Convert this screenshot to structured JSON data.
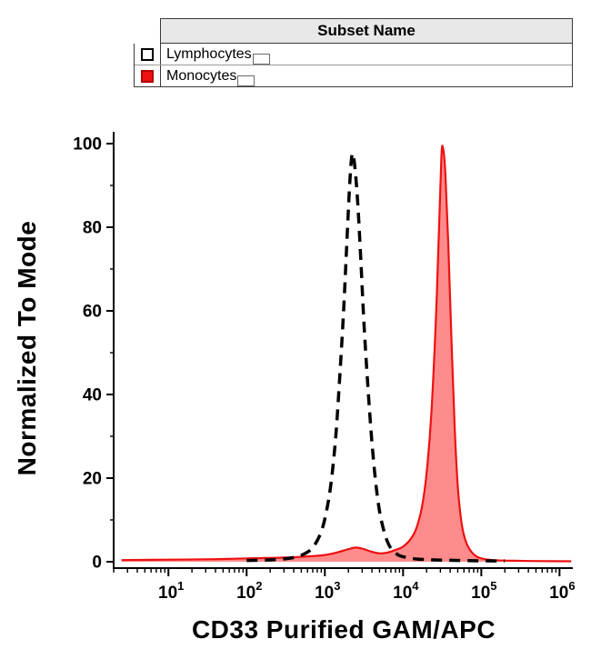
{
  "legend": {
    "header": "Subset Name",
    "entries": [
      {
        "label": "Lymphocytes",
        "swatch_fill": "#ffffff",
        "swatch_border": "#000000"
      },
      {
        "label": "Monocytes",
        "swatch_fill": "#ee1111",
        "swatch_border": "#b00000"
      }
    ]
  },
  "chart_data": {
    "type": "line",
    "title": "",
    "xlabel": "CD33 Purified GAM/APC",
    "ylabel": "Normalized To Mode",
    "x_scale": "log10",
    "xlim_log10": [
      0.3,
      6.17
    ],
    "ylim": [
      0,
      100
    ],
    "y_ticks": [
      0,
      20,
      40,
      60,
      80,
      100
    ],
    "y_minor_step": 10,
    "x_tick_base": "10",
    "x_tick_exponents": [
      1,
      2,
      3,
      4,
      5,
      6
    ],
    "grid": false,
    "legend_position": "top",
    "axis_color": "#000000",
    "series": [
      {
        "name": "Monocytes",
        "line_style": "solid",
        "color": "#ee1111",
        "fill": "rgba(255,45,45,0.55)",
        "points": [
          [
            0.4,
            0.4
          ],
          [
            1.0,
            0.5
          ],
          [
            1.6,
            0.6
          ],
          [
            2.0,
            0.8
          ],
          [
            2.5,
            1.0
          ],
          [
            2.8,
            1.3
          ],
          [
            3.0,
            1.6
          ],
          [
            3.15,
            2.2
          ],
          [
            3.3,
            3.0
          ],
          [
            3.4,
            3.4
          ],
          [
            3.5,
            3.0
          ],
          [
            3.6,
            2.4
          ],
          [
            3.7,
            2.0
          ],
          [
            3.8,
            2.2
          ],
          [
            3.9,
            2.8
          ],
          [
            4.0,
            3.6
          ],
          [
            4.1,
            5.5
          ],
          [
            4.17,
            8
          ],
          [
            4.24,
            13
          ],
          [
            4.3,
            21
          ],
          [
            4.36,
            35
          ],
          [
            4.42,
            58
          ],
          [
            4.46,
            80
          ],
          [
            4.49,
            97
          ],
          [
            4.51,
            99
          ],
          [
            4.54,
            93
          ],
          [
            4.58,
            75
          ],
          [
            4.62,
            52
          ],
          [
            4.66,
            32
          ],
          [
            4.7,
            18
          ],
          [
            4.75,
            9
          ],
          [
            4.8,
            5
          ],
          [
            4.85,
            3
          ],
          [
            4.92,
            1.5
          ],
          [
            5.0,
            0.8
          ],
          [
            5.15,
            0.4
          ],
          [
            5.4,
            0.25
          ],
          [
            5.8,
            0.15
          ],
          [
            6.15,
            0.1
          ]
        ]
      },
      {
        "name": "Lymphocytes",
        "line_style": "dashed",
        "color": "#000000",
        "fill": "none",
        "points": [
          [
            2.0,
            0.3
          ],
          [
            2.35,
            0.5
          ],
          [
            2.6,
            1.0
          ],
          [
            2.75,
            2
          ],
          [
            2.85,
            3.5
          ],
          [
            2.95,
            7
          ],
          [
            3.02,
            12
          ],
          [
            3.08,
            19
          ],
          [
            3.14,
            30
          ],
          [
            3.19,
            44
          ],
          [
            3.24,
            60
          ],
          [
            3.28,
            76
          ],
          [
            3.32,
            91
          ],
          [
            3.35,
            97.5
          ],
          [
            3.38,
            95
          ],
          [
            3.42,
            86
          ],
          [
            3.46,
            72
          ],
          [
            3.5,
            57
          ],
          [
            3.55,
            42
          ],
          [
            3.6,
            29
          ],
          [
            3.65,
            19
          ],
          [
            3.7,
            12
          ],
          [
            3.76,
            7
          ],
          [
            3.82,
            4
          ],
          [
            3.88,
            2.5
          ],
          [
            3.95,
            1.5
          ],
          [
            4.05,
            1.0
          ],
          [
            4.2,
            0.6
          ],
          [
            4.5,
            0.4
          ],
          [
            4.9,
            0.25
          ],
          [
            5.3,
            0.2
          ]
        ]
      }
    ]
  }
}
